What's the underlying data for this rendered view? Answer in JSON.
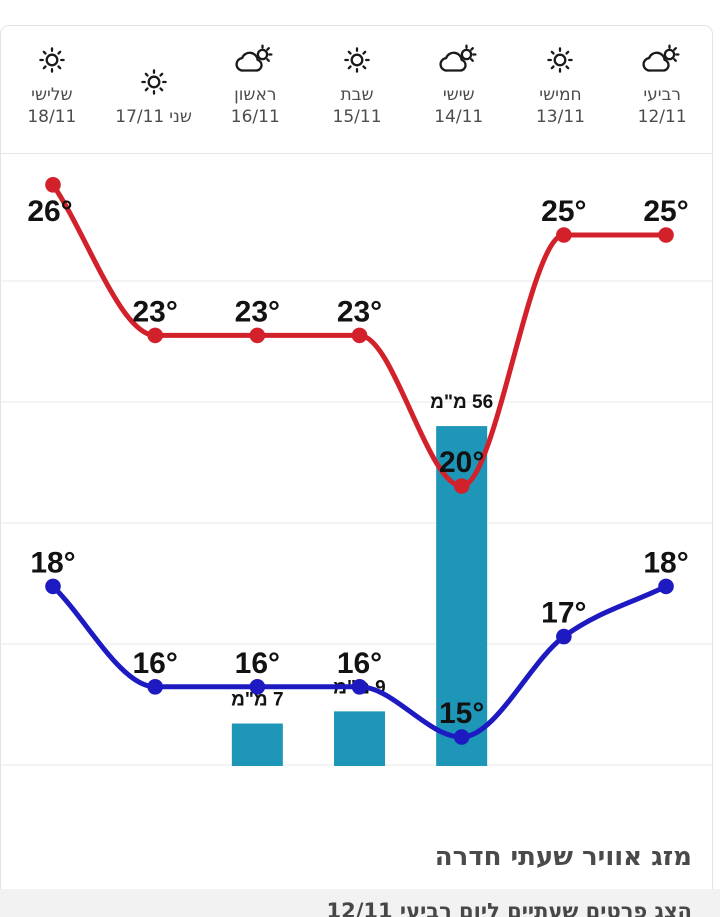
{
  "days": [
    {
      "name": "שלישי",
      "date": "18/11",
      "icon": "sunny",
      "single_line": false
    },
    {
      "name": "שני",
      "date": "17/11",
      "icon": "sunny",
      "single_line": true
    },
    {
      "name": "ראשון",
      "date": "16/11",
      "icon": "partly-cloudy",
      "single_line": false
    },
    {
      "name": "שבת",
      "date": "15/11",
      "icon": "sunny",
      "single_line": false
    },
    {
      "name": "שישי",
      "date": "14/11",
      "icon": "partly-cloudy",
      "single_line": false
    },
    {
      "name": "חמישי",
      "date": "13/11",
      "icon": "sunny",
      "single_line": false
    },
    {
      "name": "רביעי",
      "date": "12/11",
      "icon": "partly-cloudy",
      "single_line": false
    }
  ],
  "chart_data": {
    "type": "line+bar",
    "direction": "rtl",
    "x_labels": [
      "18/11",
      "17/11",
      "16/11",
      "15/11",
      "14/11",
      "13/11",
      "12/11"
    ],
    "series": [
      {
        "name": "max-temp",
        "color": "#d2212b",
        "unit": "°",
        "values": [
          26,
          23,
          23,
          23,
          20,
          25,
          25
        ],
        "point_labels": [
          "26°",
          "23°",
          "23°",
          "23°",
          "20°",
          "25°",
          "25°"
        ]
      },
      {
        "name": "min-temp",
        "color": "#1d1ac1",
        "unit": "°",
        "values": [
          18,
          16,
          16,
          16,
          15,
          17,
          18
        ],
        "point_labels": [
          "18°",
          "16°",
          "16°",
          "16°",
          "15°",
          "17°",
          "18°"
        ]
      }
    ],
    "precipitation": {
      "name": "rain-mm",
      "color": "#1e96b8",
      "unit": "מ\"מ",
      "values": [
        null,
        null,
        7,
        9,
        56,
        null,
        null
      ],
      "bar_labels": [
        null,
        null,
        "7 מ\"מ",
        "9 מ\"מ",
        "56 מ\"מ",
        null,
        null
      ]
    },
    "grid": true,
    "legend": false,
    "title": ""
  },
  "footer": {
    "title": "מזג אוויר שעתי חדרה",
    "link_text": "הצג פרטים שעתיים ליום רביעי 12/11"
  }
}
